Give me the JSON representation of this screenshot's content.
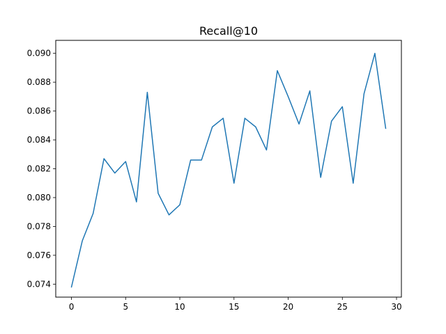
{
  "chart_data": {
    "type": "line",
    "title": "Recall@10",
    "xlabel": "",
    "ylabel": "",
    "xlim": [
      -1.45,
      30.45
    ],
    "ylim": [
      0.0731,
      0.0909
    ],
    "grid": false,
    "x_ticks": [
      0,
      5,
      10,
      15,
      20,
      25,
      30
    ],
    "x_tick_labels": [
      "0",
      "5",
      "10",
      "15",
      "20",
      "25",
      "30"
    ],
    "y_ticks": [
      0.074,
      0.076,
      0.078,
      0.08,
      0.082,
      0.084,
      0.086,
      0.088,
      0.09
    ],
    "y_tick_labels": [
      "0.074",
      "0.076",
      "0.078",
      "0.080",
      "0.082",
      "0.084",
      "0.086",
      "0.088",
      "0.090"
    ],
    "series": [
      {
        "color": "#1f77b4",
        "x": [
          0,
          1,
          2,
          3,
          4,
          5,
          6,
          7,
          8,
          9,
          10,
          11,
          12,
          13,
          14,
          15,
          16,
          17,
          18,
          19,
          20,
          21,
          22,
          23,
          24,
          25,
          26,
          27,
          28,
          29
        ],
        "y": [
          0.0738,
          0.077,
          0.0789,
          0.0827,
          0.0817,
          0.0825,
          0.0797,
          0.0873,
          0.0803,
          0.0788,
          0.0795,
          0.0826,
          0.0826,
          0.0849,
          0.0855,
          0.081,
          0.0855,
          0.0849,
          0.0833,
          0.0888,
          0.087,
          0.0851,
          0.0874,
          0.0814,
          0.0853,
          0.0863,
          0.081,
          0.0872,
          0.09,
          0.0848
        ]
      }
    ]
  }
}
